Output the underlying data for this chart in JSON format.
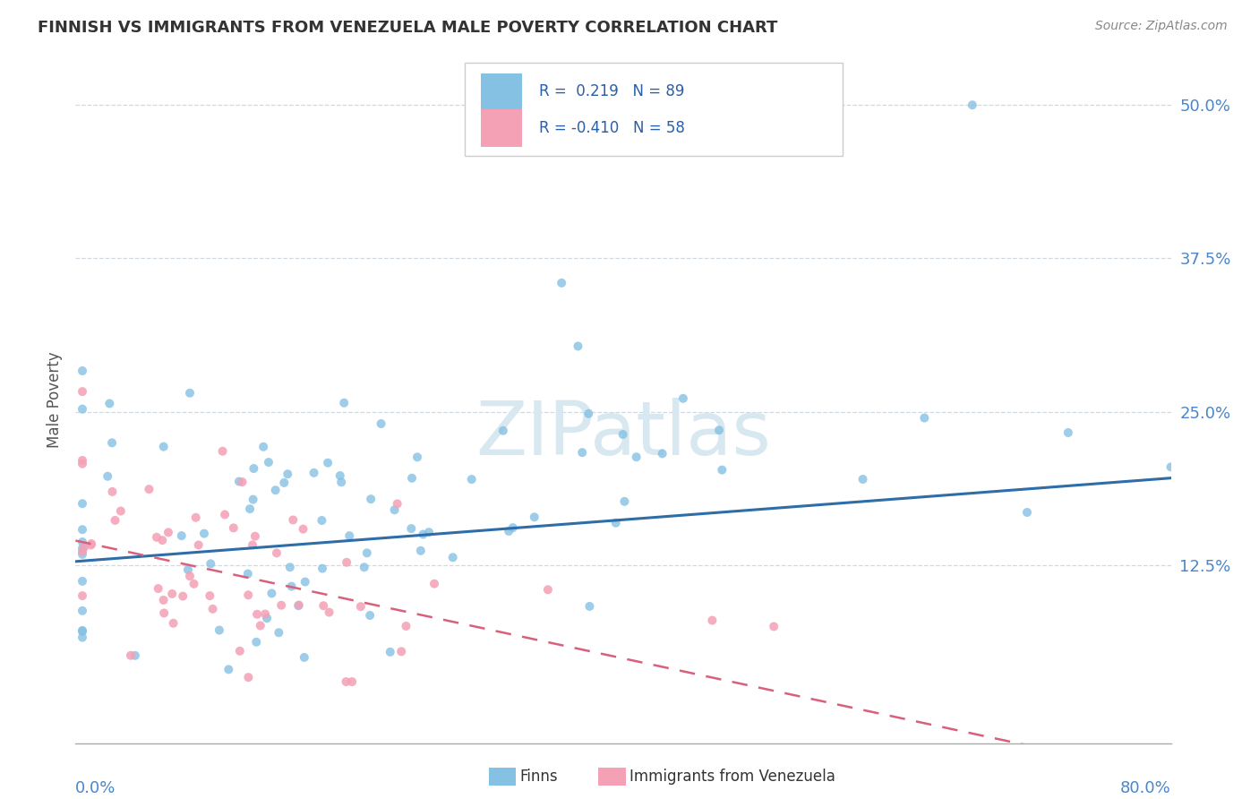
{
  "title": "FINNISH VS IMMIGRANTS FROM VENEZUELA MALE POVERTY CORRELATION CHART",
  "source": "Source: ZipAtlas.com",
  "ylabel": "Male Poverty",
  "xlim": [
    0.0,
    0.8
  ],
  "ylim": [
    -0.02,
    0.54
  ],
  "yticks": [
    0.125,
    0.25,
    0.375,
    0.5
  ],
  "ytick_labels": [
    "12.5%",
    "25.0%",
    "37.5%",
    "50.0%"
  ],
  "r_finns": 0.219,
  "n_finns": 89,
  "r_venezuela": -0.41,
  "n_venezuela": 58,
  "color_finns": "#85c1e3",
  "color_venezuela": "#f4a0b5",
  "color_finns_line": "#2e6da8",
  "color_venezuela_line": "#d9607a",
  "watermark_color": "#d8e8f0",
  "legend_finns": "Finns",
  "legend_venezuela": "Immigrants from Venezuela"
}
